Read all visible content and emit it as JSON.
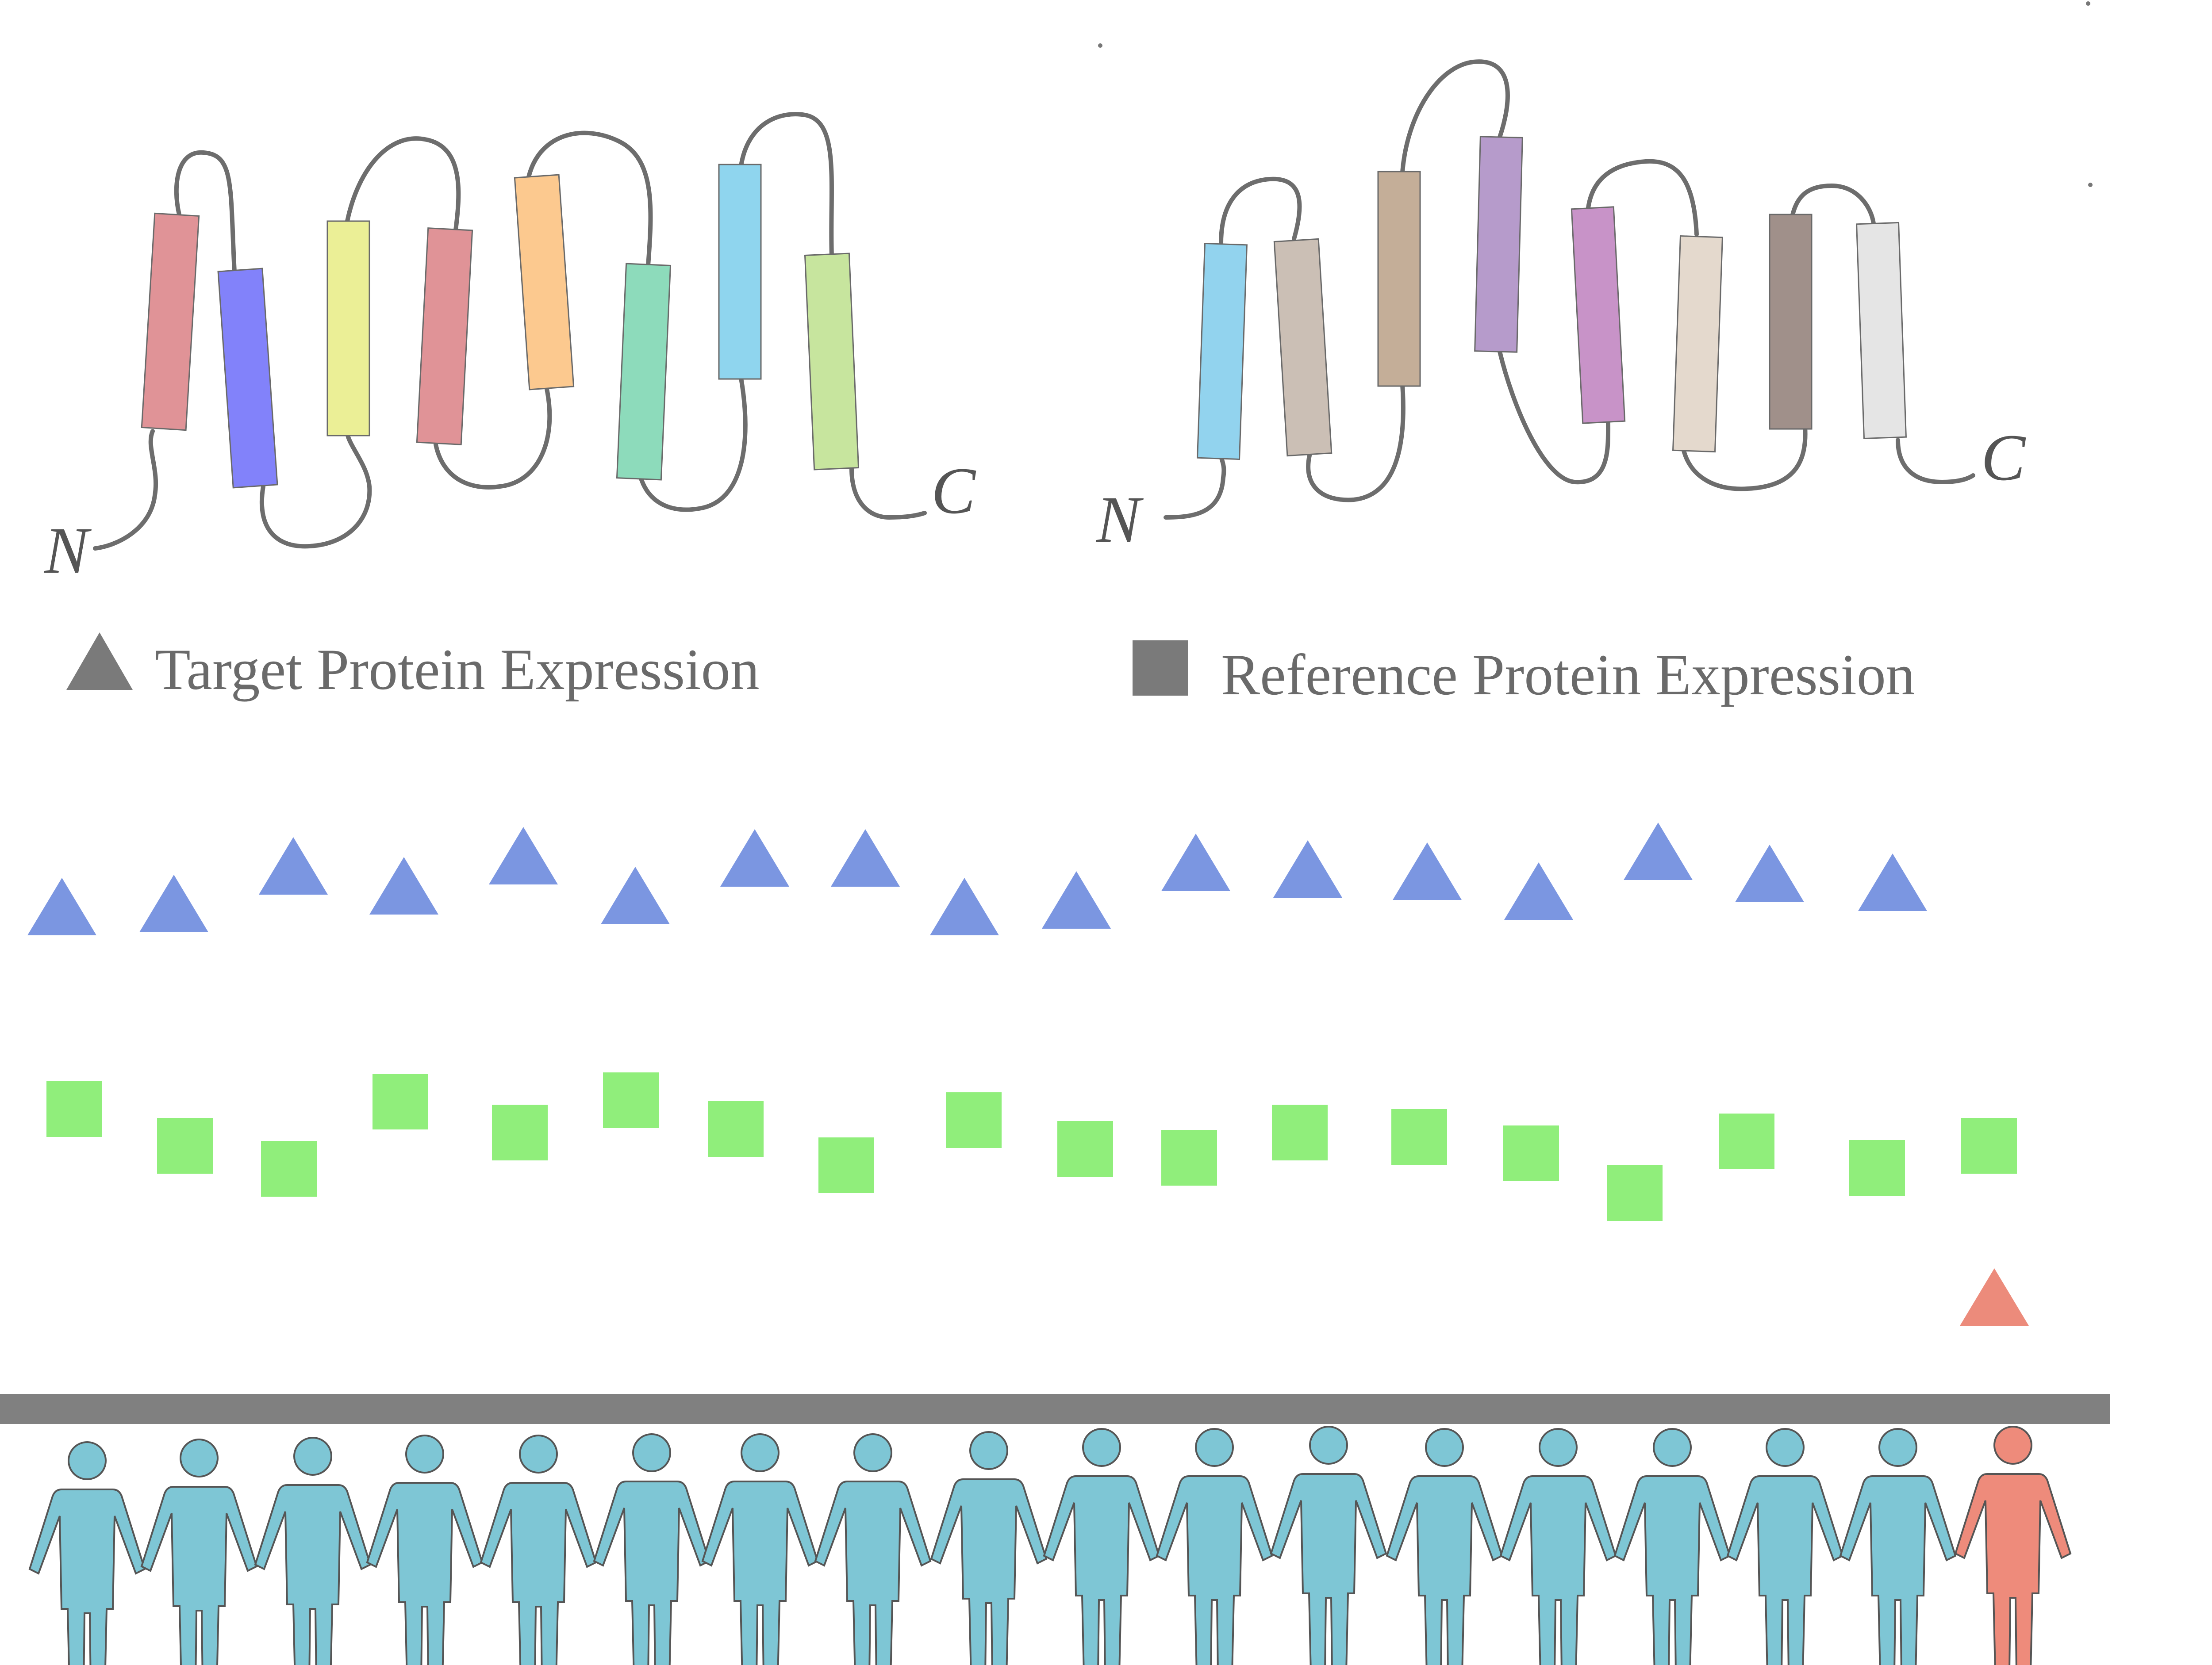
{
  "protein_left": {
    "n_terminus_label": "N",
    "c_terminus_label": "C",
    "helix_colors": [
      "#e09397",
      "#8282fa",
      "#ebef96",
      "#e09397",
      "#fcc98f",
      "#8ddbbb",
      "#8fd5ee",
      "#c7e59e"
    ]
  },
  "protein_right": {
    "n_terminus_label": "N",
    "c_terminus_label": "C",
    "helix_colors": [
      "#92d3ee",
      "#cbbfb5",
      "#c4ae98",
      "#b69bcb",
      "#c893c8",
      "#e4d9cd",
      "#a0908a",
      "#e5e5e5"
    ]
  },
  "legend": {
    "target_label": "Target Protein Expression",
    "reference_label": "Reference Protein Expression",
    "symbol_color": "#7a7a7a"
  },
  "target_expression": {
    "color": "#7b96e1",
    "count": 17
  },
  "reference_expression": {
    "color": "#90ee7b",
    "count": 18
  },
  "outlier_target": {
    "color": "#ec8b7b"
  },
  "population": {
    "normal_color": "#7ec6d5",
    "outlier_color": "#ee8b7b",
    "normal_count": 17,
    "outlier_count": 1,
    "baseline_color": "#808080"
  }
}
